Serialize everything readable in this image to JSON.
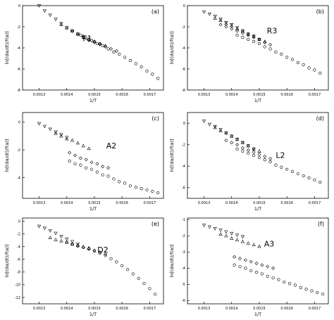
{
  "chart_data": [
    {
      "type": "scatter",
      "panel_letter": "(a)",
      "model_label": "F1",
      "xlabel": "1/T",
      "ylabel": "ln[(dα/dt)/f(α)]",
      "xlim": [
        0.00124,
        0.00175
      ],
      "ylim": [
        -8,
        0
      ],
      "xticks": [
        0.0013,
        0.0014,
        0.0015,
        0.0016,
        0.0017
      ],
      "yticks": [
        0,
        -2,
        -4,
        -6,
        -8
      ],
      "grid": false,
      "series": [
        {
          "marker": "triangle-down",
          "x": [
            0.0013,
            0.00132,
            0.00134,
            0.00136,
            0.00138,
            0.0014,
            0.00142,
            0.00144,
            0.00146,
            0.00148,
            0.0015,
            0.00152
          ],
          "y": [
            0.0,
            -0.5,
            -0.9,
            -1.3,
            -1.7,
            -2.1,
            -2.4,
            -2.7,
            -3.0,
            -3.3,
            -3.5,
            -3.7
          ]
        },
        {
          "marker": "triangle-up",
          "x": [
            0.00138,
            0.0014,
            0.00142,
            0.00144,
            0.00146,
            0.00148,
            0.0015,
            0.00152,
            0.00154
          ],
          "y": [
            -1.8,
            -2.1,
            -2.4,
            -2.7,
            -3.0,
            -3.2,
            -3.4,
            -3.6,
            -3.8
          ]
        },
        {
          "marker": "diamond",
          "x": [
            0.00142,
            0.00144,
            0.00146,
            0.00148,
            0.0015,
            0.00152,
            0.00154,
            0.00156,
            0.00158
          ],
          "y": [
            -2.4,
            -2.7,
            -2.9,
            -3.2,
            -3.4,
            -3.6,
            -3.9,
            -4.1,
            -4.3
          ]
        },
        {
          "marker": "circle",
          "x": [
            0.00145,
            0.00147,
            0.00149,
            0.00151,
            0.00153,
            0.00155,
            0.00157,
            0.00159,
            0.00161,
            0.00163,
            0.00165,
            0.00167,
            0.00169,
            0.00171,
            0.00173
          ],
          "y": [
            -2.8,
            -3.1,
            -3.3,
            -3.6,
            -3.8,
            -4.1,
            -4.4,
            -4.6,
            -4.9,
            -5.2,
            -5.5,
            -5.8,
            -6.2,
            -6.5,
            -6.9
          ]
        }
      ]
    },
    {
      "type": "scatter",
      "panel_letter": "(b)",
      "model_label": "R3",
      "xlabel": "1/T",
      "ylabel": "ln[(dα/dt)/f(α)]",
      "xlim": [
        0.00124,
        0.00175
      ],
      "ylim": [
        -8,
        0
      ],
      "xticks": [
        0.0013,
        0.0014,
        0.0015,
        0.0016,
        0.0017
      ],
      "yticks": [
        0,
        -2,
        -4,
        -6,
        -8
      ],
      "grid": false,
      "series": [
        {
          "marker": "triangle-down",
          "x": [
            0.0013,
            0.00132,
            0.00134,
            0.00136,
            0.00138,
            0.0014,
            0.00142,
            0.00144,
            0.00146,
            0.00148,
            0.0015
          ],
          "y": [
            -0.6,
            -0.8,
            -1.0,
            -1.3,
            -1.6,
            -1.8,
            -2.1,
            -2.4,
            -2.7,
            -2.9,
            -3.2
          ]
        },
        {
          "marker": "triangle-up",
          "x": [
            0.00134,
            0.00136,
            0.00138,
            0.0014,
            0.00142,
            0.00144,
            0.00146,
            0.00148,
            0.0015,
            0.00152
          ],
          "y": [
            -1.2,
            -1.4,
            -1.7,
            -1.9,
            -2.2,
            -2.4,
            -2.7,
            -2.9,
            -3.2,
            -3.4
          ]
        },
        {
          "marker": "diamond",
          "x": [
            0.00136,
            0.00138,
            0.0014,
            0.00142,
            0.00144,
            0.00146,
            0.00148,
            0.0015,
            0.00152,
            0.00154
          ],
          "y": [
            -1.8,
            -2.0,
            -2.2,
            -2.4,
            -2.6,
            -2.8,
            -3.0,
            -3.2,
            -3.5,
            -3.7
          ]
        },
        {
          "marker": "circle",
          "x": [
            0.00142,
            0.00144,
            0.00146,
            0.00148,
            0.0015,
            0.00152,
            0.00154,
            0.00156,
            0.00158,
            0.0016,
            0.00162,
            0.00164,
            0.00166,
            0.00168,
            0.0017,
            0.00172
          ],
          "y": [
            -2.8,
            -3.0,
            -3.2,
            -3.4,
            -3.6,
            -3.9,
            -4.1,
            -4.4,
            -4.6,
            -4.9,
            -5.1,
            -5.4,
            -5.6,
            -5.9,
            -6.1,
            -6.4
          ]
        }
      ]
    },
    {
      "type": "scatter",
      "panel_letter": "(c)",
      "model_label": "A2",
      "xlabel": "1/T",
      "ylabel": "ln[(dα/dt)/f(α)]",
      "xlim": [
        0.00124,
        0.00175
      ],
      "ylim": [
        -5.5,
        0.7
      ],
      "xticks": [
        0.0013,
        0.0014,
        0.0015,
        0.0016,
        0.0017
      ],
      "yticks": [
        0,
        -2,
        -4
      ],
      "grid": false,
      "series": [
        {
          "marker": "triangle-down",
          "x": [
            0.0013,
            0.00132,
            0.00134,
            0.00136,
            0.00138,
            0.0014
          ],
          "y": [
            -0.1,
            -0.3,
            -0.5,
            -0.7,
            -0.9,
            -1.1
          ]
        },
        {
          "marker": "triangle-up",
          "x": [
            0.00136,
            0.00138,
            0.0014,
            0.00142,
            0.00144,
            0.00146,
            0.00148
          ],
          "y": [
            -0.8,
            -1.0,
            -1.2,
            -1.3,
            -1.5,
            -1.7,
            -1.9
          ]
        },
        {
          "marker": "diamond",
          "x": [
            0.00141,
            0.00143,
            0.00145,
            0.00147,
            0.00149,
            0.00151,
            0.00153,
            0.00155
          ],
          "y": [
            -2.2,
            -2.4,
            -2.6,
            -2.7,
            -2.9,
            -3.0,
            -3.2,
            -3.3
          ]
        },
        {
          "marker": "circle",
          "x": [
            0.00141,
            0.00143,
            0.00145,
            0.00147,
            0.00149,
            0.00151,
            0.00153,
            0.00155,
            0.00157,
            0.00159,
            0.00161,
            0.00163,
            0.00165,
            0.00167,
            0.00169,
            0.00171,
            0.00173
          ],
          "y": [
            -2.8,
            -3.0,
            -3.1,
            -3.3,
            -3.4,
            -3.6,
            -3.8,
            -3.9,
            -4.1,
            -4.3,
            -4.4,
            -4.6,
            -4.7,
            -4.8,
            -4.9,
            -5.0,
            -5.1
          ]
        }
      ]
    },
    {
      "type": "scatter",
      "panel_letter": "(d)",
      "model_label": "L2",
      "xlabel": "1/T",
      "ylabel": "ln[(dα/dt)/f(α)]",
      "xlim": [
        0.00124,
        0.00175
      ],
      "ylim": [
        -7,
        1
      ],
      "xticks": [
        0.0013,
        0.0014,
        0.0015,
        0.0016,
        0.0017
      ],
      "yticks": [
        0,
        -2,
        -4,
        -6
      ],
      "grid": false,
      "series": [
        {
          "marker": "triangle-down",
          "x": [
            0.0013,
            0.00132,
            0.00134,
            0.00136,
            0.00138,
            0.0014,
            0.00142,
            0.00144,
            0.00146,
            0.00148
          ],
          "y": [
            0.2,
            -0.1,
            -0.3,
            -0.6,
            -0.9,
            -1.2,
            -1.5,
            -1.8,
            -2.1,
            -2.4
          ]
        },
        {
          "marker": "triangle-up",
          "x": [
            0.00134,
            0.00136,
            0.00138,
            0.0014,
            0.00142,
            0.00144,
            0.00146,
            0.00148,
            0.0015
          ],
          "y": [
            -0.4,
            -0.7,
            -0.9,
            -1.2,
            -1.5,
            -1.8,
            -2.1,
            -2.4,
            -2.6
          ]
        },
        {
          "marker": "diamond",
          "x": [
            0.00138,
            0.0014,
            0.00142,
            0.00144,
            0.00146,
            0.00148,
            0.0015,
            0.00152,
            0.00154
          ],
          "y": [
            -1.6,
            -1.8,
            -2.0,
            -2.3,
            -2.5,
            -2.7,
            -2.9,
            -3.1,
            -3.3
          ]
        },
        {
          "marker": "circle",
          "x": [
            0.00142,
            0.00144,
            0.00146,
            0.00148,
            0.0015,
            0.00152,
            0.00154,
            0.00156,
            0.00158,
            0.0016,
            0.00162,
            0.00164,
            0.00166,
            0.00168,
            0.0017,
            0.00172
          ],
          "y": [
            -2.4,
            -2.6,
            -2.8,
            -3.0,
            -3.2,
            -3.4,
            -3.6,
            -3.9,
            -4.1,
            -4.3,
            -4.5,
            -4.7,
            -4.9,
            -5.1,
            -5.3,
            -5.5
          ]
        }
      ]
    },
    {
      "type": "scatter",
      "panel_letter": "(e)",
      "model_label": "D2",
      "xlabel": "1/T",
      "ylabel": "ln[(dα/dt)/f(α)]",
      "xlim": [
        0.00124,
        0.00175
      ],
      "ylim": [
        -13,
        0.5
      ],
      "xticks": [
        0.0013,
        0.0014,
        0.0015,
        0.0016,
        0.0017
      ],
      "yticks": [
        0,
        -2,
        -4,
        -6,
        -8,
        -10,
        -12
      ],
      "grid": false,
      "series": [
        {
          "marker": "triangle-down",
          "x": [
            0.0013,
            0.00132,
            0.00134,
            0.00136,
            0.00138,
            0.0014,
            0.00142,
            0.00144
          ],
          "y": [
            -0.8,
            -1.1,
            -1.5,
            -1.9,
            -2.4,
            -2.8,
            -3.2,
            -3.6
          ]
        },
        {
          "marker": "triangle-up",
          "x": [
            0.00134,
            0.00136,
            0.00138,
            0.0014,
            0.00142,
            0.00144,
            0.00146,
            0.00148
          ],
          "y": [
            -2.6,
            -2.9,
            -3.1,
            -3.3,
            -3.6,
            -3.8,
            -4.0,
            -4.2
          ]
        },
        {
          "marker": "diamond",
          "x": [
            0.0014,
            0.00142,
            0.00144,
            0.00146,
            0.00148,
            0.0015,
            0.00152,
            0.00154
          ],
          "y": [
            -3.3,
            -3.6,
            -3.9,
            -4.1,
            -4.3,
            -4.6,
            -4.9,
            -5.2
          ]
        },
        {
          "marker": "circle",
          "x": [
            0.00142,
            0.00144,
            0.00146,
            0.00148,
            0.0015,
            0.00152,
            0.00154,
            0.00156,
            0.00158,
            0.0016,
            0.00162,
            0.00164,
            0.00166,
            0.00168,
            0.0017,
            0.00172
          ],
          "y": [
            -3.6,
            -3.9,
            -4.1,
            -4.4,
            -4.7,
            -5.0,
            -5.4,
            -5.9,
            -6.4,
            -7.0,
            -7.6,
            -8.3,
            -9.0,
            -9.8,
            -10.6,
            -11.5
          ]
        }
      ]
    },
    {
      "type": "scatter",
      "panel_letter": "(f)",
      "model_label": "A3",
      "xlabel": "1/T",
      "ylabel": "ln[(dα/dt)/f(α)]",
      "xlim": [
        0.00124,
        0.00175
      ],
      "ylim": [
        -6.2,
        -0.9
      ],
      "xticks": [
        0.0013,
        0.0014,
        0.0015,
        0.0016,
        0.0017
      ],
      "yticks": [
        -1,
        -2,
        -3,
        -4,
        -5,
        -6
      ],
      "grid": false,
      "series": [
        {
          "marker": "triangle-down",
          "x": [
            0.0013,
            0.00132,
            0.00134,
            0.00136,
            0.00138,
            0.0014,
            0.00142,
            0.00144
          ],
          "y": [
            -1.35,
            -1.45,
            -1.55,
            -1.65,
            -1.75,
            -1.85,
            -1.95,
            -2.05
          ]
        },
        {
          "marker": "triangle-up",
          "x": [
            0.00136,
            0.00138,
            0.0014,
            0.00142,
            0.00144,
            0.00146,
            0.00148,
            0.0015
          ],
          "y": [
            -1.9,
            -2.0,
            -2.15,
            -2.25,
            -2.35,
            -2.45,
            -2.55,
            -2.65
          ]
        },
        {
          "marker": "diamond",
          "x": [
            0.00141,
            0.00143,
            0.00145,
            0.00147,
            0.00149,
            0.00151,
            0.00153,
            0.00155
          ],
          "y": [
            -3.3,
            -3.4,
            -3.5,
            -3.6,
            -3.7,
            -3.8,
            -3.9,
            -4.0
          ]
        },
        {
          "marker": "circle",
          "x": [
            0.00141,
            0.00143,
            0.00145,
            0.00147,
            0.00149,
            0.00151,
            0.00153,
            0.00155,
            0.00157,
            0.00159,
            0.00161,
            0.00163,
            0.00165,
            0.00167,
            0.00169,
            0.00171,
            0.00173
          ],
          "y": [
            -3.8,
            -3.9,
            -4.0,
            -4.15,
            -4.25,
            -4.35,
            -4.5,
            -4.6,
            -4.7,
            -4.85,
            -4.95,
            -5.05,
            -5.2,
            -5.3,
            -5.4,
            -5.5,
            -5.6
          ]
        }
      ]
    }
  ]
}
